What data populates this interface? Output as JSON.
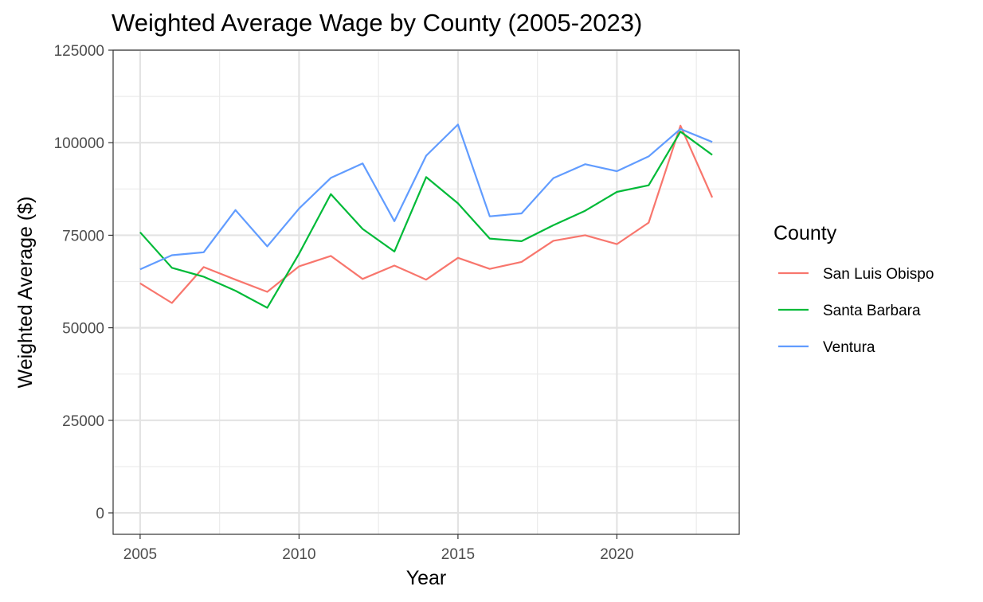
{
  "chart_data": {
    "type": "line",
    "title": "Weighted Average Wage by County (2005-2023)",
    "xlabel": "Year",
    "ylabel": "Weighted Average ($)",
    "xlim": [
      2004.15,
      2023.85
    ],
    "ylim": [
      -5800,
      125000
    ],
    "x_ticks": [
      2005,
      2010,
      2015,
      2020
    ],
    "x_tick_labels": [
      "2005",
      "2010",
      "2015",
      "2020"
    ],
    "y_ticks": [
      0,
      25000,
      50000,
      75000,
      100000,
      125000
    ],
    "y_tick_labels": [
      "0",
      "25000",
      "50000",
      "75000",
      "100000",
      "125000"
    ],
    "grid": true,
    "legend_title": "County",
    "legend_position": "right",
    "x": [
      2005,
      2006,
      2007,
      2008,
      2009,
      2010,
      2011,
      2012,
      2013,
      2014,
      2015,
      2016,
      2017,
      2018,
      2019,
      2020,
      2021,
      2022,
      2023
    ],
    "series": [
      {
        "name": "San Luis Obispo",
        "color": "#F8766D",
        "values": [
          62000,
          56700,
          66400,
          63000,
          59700,
          66600,
          69400,
          63200,
          66800,
          63000,
          68900,
          65900,
          67800,
          73500,
          75000,
          72600,
          78400,
          104600,
          85200
        ]
      },
      {
        "name": "Santa Barbara",
        "color": "#00BA38",
        "values": [
          75800,
          66200,
          63800,
          60000,
          55400,
          70000,
          86100,
          76700,
          70600,
          90700,
          83600,
          74100,
          73400,
          77700,
          81600,
          86700,
          88500,
          103000,
          96700
        ]
      },
      {
        "name": "Ventura",
        "color": "#619CFF",
        "values": [
          65800,
          69600,
          70400,
          81800,
          72000,
          82200,
          90500,
          94400,
          78800,
          96500,
          104900,
          80100,
          80900,
          90400,
          94200,
          92300,
          96300,
          103700,
          100200
        ]
      }
    ]
  }
}
